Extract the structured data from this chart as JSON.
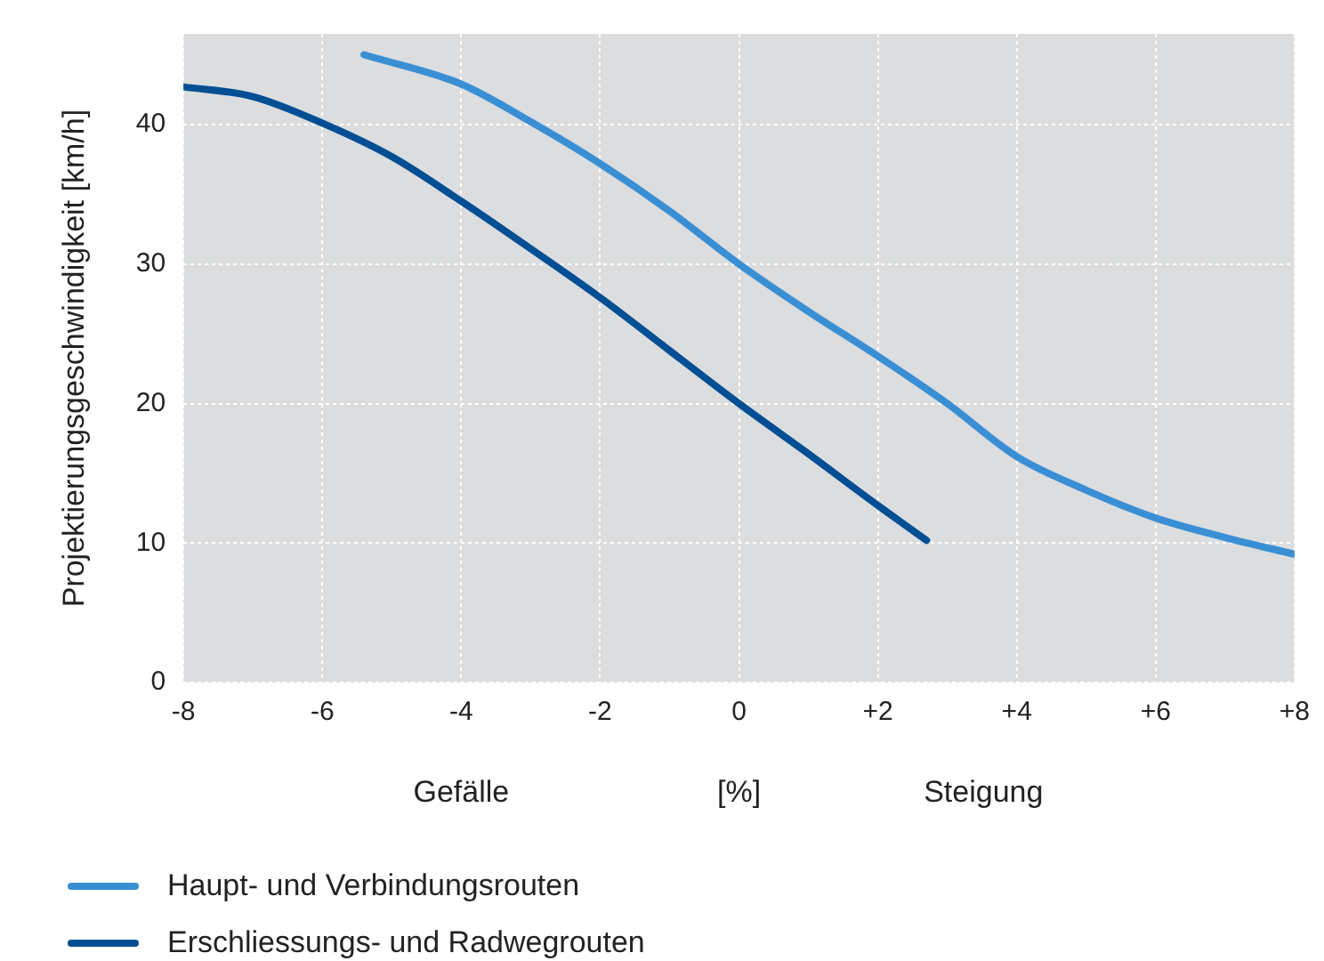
{
  "chart_data": {
    "type": "line",
    "xlabel": "[%]",
    "ylabel": "Projektierungsgeschwindigkeit [km/h]",
    "annotations": [
      "Gefälle",
      "Steigung"
    ],
    "series": [
      {
        "name": "Haupt- und Verbindungsrouten",
        "color": "#3a8fd4",
        "x": [
          -5.4,
          -4,
          -3,
          -2,
          -1,
          0,
          1,
          2,
          3,
          4,
          5,
          6,
          7,
          8
        ],
        "values": [
          45,
          42.9,
          40.2,
          37.2,
          33.8,
          30,
          26.6,
          23.4,
          20,
          16.2,
          13.8,
          11.8,
          10.4,
          9.2
        ]
      },
      {
        "name": "Erschliessungs- und Radwegrouten",
        "color": "#004f94",
        "x": [
          -8,
          -7,
          -6,
          -5,
          -4,
          -3,
          -2,
          -1,
          0,
          1,
          2,
          2.7
        ],
        "values": [
          42.7,
          42,
          40.1,
          37.7,
          34.5,
          31.1,
          27.6,
          23.8,
          20,
          16.4,
          12.7,
          10.2
        ]
      }
    ],
    "xlim": [
      -8,
      8
    ],
    "xticks": [
      {
        "value": -8,
        "label": "-8"
      },
      {
        "value": -6,
        "label": "-6"
      },
      {
        "value": -4,
        "label": "-4"
      },
      {
        "value": -2,
        "label": "-2"
      },
      {
        "value": 0,
        "label": "0"
      },
      {
        "value": 2,
        "label": "+2"
      },
      {
        "value": 4,
        "label": "+4"
      },
      {
        "value": 6,
        "label": "+6"
      },
      {
        "value": 8,
        "label": "+8"
      }
    ],
    "ylim": [
      0,
      46.5
    ],
    "yticks": [
      0,
      10,
      20,
      30,
      40
    ],
    "grid": true,
    "legend": "bottom left",
    "marker": "none",
    "line_style": "solid"
  }
}
